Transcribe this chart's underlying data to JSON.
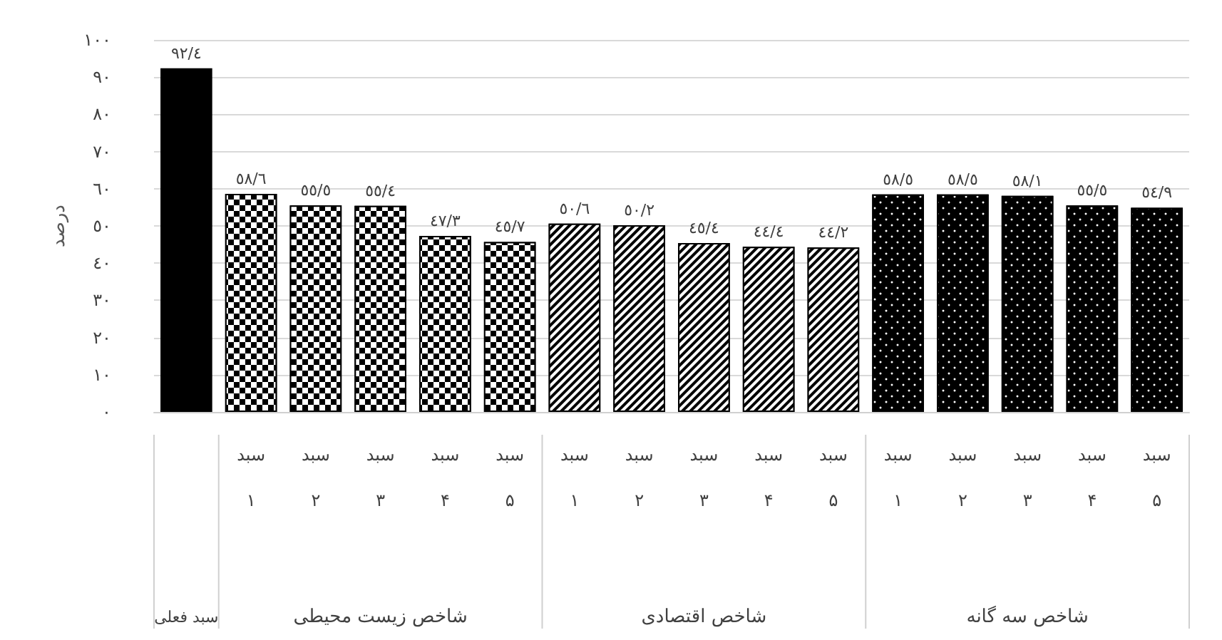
{
  "chart_data": {
    "type": "bar",
    "ylabel": "درصد",
    "categories": [
      null,
      "سبد\n۱",
      "سبد\n۲",
      "سبد\n۳",
      "سبد\n۴",
      "سبد\n۵",
      "سبد\n۱",
      "سبد\n۲",
      "سبد\n۳",
      "سبد\n۴",
      "سبد\n۵",
      "سبد\n۱",
      "سبد\n۲",
      "سبد\n۳",
      "سبد\n۴",
      "سبد\n۵"
    ],
    "values": [
      92.4,
      58.6,
      55.5,
      55.4,
      47.3,
      45.7,
      50.6,
      50.2,
      45.4,
      44.4,
      44.2,
      58.5,
      58.5,
      58.1,
      55.5,
      54.9
    ],
    "value_labels": [
      "٩٢/٤",
      "٥٨/٦",
      "٥٥/٥",
      "٥٥/٤",
      "٤٧/٣",
      "٤٥/٧",
      "٥٠/٦",
      "٥٠/٢",
      "٤٥/٤",
      "٤٤/٤",
      "٤٤/٢",
      "٥٨/٥",
      "٥٨/٥",
      "٥٨/١",
      "٥٥/٥",
      "٥٤/٩"
    ],
    "colors": [
      "#000000",
      "#000000",
      "#000000",
      "#000000",
      "#000000",
      "#000000",
      "#000000",
      "#000000",
      "#000000",
      "#000000",
      "#000000",
      "#000000",
      "#000000",
      "#000000",
      "#000000",
      "#000000"
    ],
    "annotations": [
      "سبد فعلی",
      "شاخص زیست محیطی",
      "شاخص اقتصادی",
      "شاخص سه گانه"
    ],
    "ylim": [
      0,
      100
    ],
    "yticks": [
      {
        "value": 0,
        "label": "٠"
      },
      {
        "value": 10,
        "label": "١٠"
      },
      {
        "value": 20,
        "label": "٢٠"
      },
      {
        "value": 30,
        "label": "٣٠"
      },
      {
        "value": 40,
        "label": "٤٠"
      },
      {
        "value": 50,
        "label": "٥٠"
      },
      {
        "value": 60,
        "label": "٦٠"
      },
      {
        "value": 70,
        "label": "٧٠"
      },
      {
        "value": 80,
        "label": "٨٠"
      },
      {
        "value": 90,
        "label": "٩٠"
      },
      {
        "value": 100,
        "label": "١٠٠"
      }
    ],
    "grid": "y"
  }
}
